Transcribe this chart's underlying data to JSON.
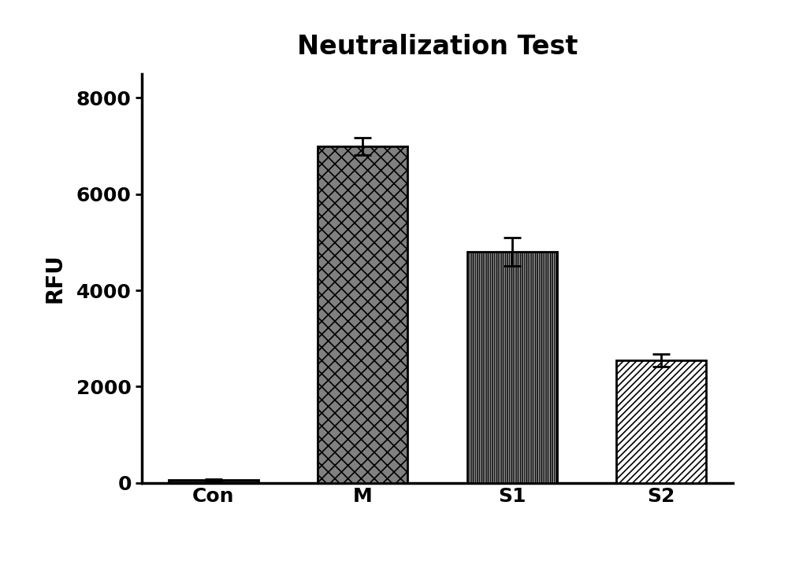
{
  "title": "Neutralization Test",
  "categories": [
    "Con",
    "M",
    "S1",
    "S2"
  ],
  "values": [
    60,
    7000,
    4800,
    2550
  ],
  "errors": [
    25,
    180,
    300,
    130
  ],
  "ylabel": "RFU",
  "ylim": [
    0,
    8500
  ],
  "yticks": [
    0,
    2000,
    4000,
    6000,
    8000
  ],
  "title_fontsize": 24,
  "axis_fontsize": 20,
  "tick_fontsize": 18,
  "bar_width": 0.6,
  "background_color": "#ffffff",
  "error_capsize": 8,
  "error_linewidth": 2.0,
  "spine_linewidth": 2.5
}
